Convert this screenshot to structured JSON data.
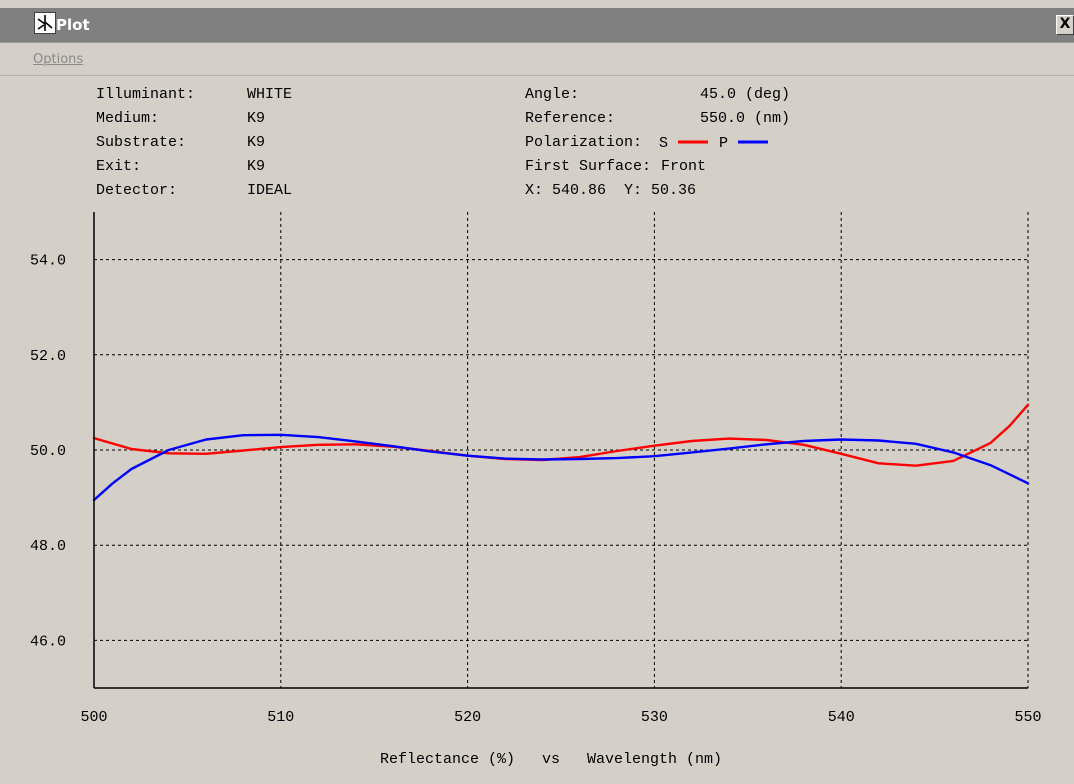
{
  "window": {
    "title": "Plot",
    "close_label": "X",
    "menu": [
      "Options"
    ]
  },
  "info": {
    "illuminant_label": "Illuminant:",
    "illuminant_value": "WHITE",
    "medium_label": "Medium:",
    "medium_value": "K9",
    "substrate_label": "Substrate:",
    "substrate_value": "K9",
    "exit_label": "Exit:",
    "exit_value": "K9",
    "detector_label": "Detector:",
    "detector_value": "IDEAL",
    "angle_label": "Angle:",
    "angle_value": "45.0 (deg)",
    "reference_label": "Reference:",
    "reference_value": "550.0 (nm)",
    "polarization_label": "Polarization:",
    "first_surface_label": "First Surface:",
    "first_surface_value": "Front",
    "cursor_readout": "X: 540.86  Y: 50.36"
  },
  "chart_data": {
    "type": "line",
    "title": "",
    "xlabel": "Reflectance (%)   vs   Wavelength (nm)",
    "ylabel": "",
    "xlim": [
      500,
      550
    ],
    "ylim": [
      45,
      55
    ],
    "x_ticks": [
      500,
      510,
      520,
      530,
      540,
      550
    ],
    "x_tick_labels": [
      "500",
      "510",
      "520",
      "530",
      "540",
      "550"
    ],
    "y_ticks": [
      54,
      52,
      50,
      48,
      46
    ],
    "y_tick_labels": [
      "54.0",
      "52.0",
      "50.0",
      "48.0",
      "46.0"
    ],
    "grid": true,
    "legend_position": "top",
    "series": [
      {
        "name": "S",
        "color": "#ff0000",
        "x": [
          500,
          502,
          504,
          506,
          508,
          510,
          512,
          514,
          516,
          518,
          520,
          522,
          524,
          526,
          528,
          530,
          532,
          534,
          536,
          538,
          540,
          542,
          544,
          546,
          548,
          549,
          550
        ],
        "y": [
          50.25,
          50.02,
          49.93,
          49.92,
          49.99,
          50.06,
          50.11,
          50.12,
          50.07,
          49.98,
          49.88,
          49.81,
          49.79,
          49.85,
          49.98,
          50.09,
          50.19,
          50.24,
          50.21,
          50.11,
          49.92,
          49.72,
          49.67,
          49.77,
          50.15,
          50.5,
          50.95
        ]
      },
      {
        "name": "P",
        "color": "#0000ff",
        "x": [
          500,
          501,
          502,
          504,
          506,
          508,
          510,
          512,
          514,
          516,
          518,
          520,
          522,
          524,
          526,
          528,
          530,
          532,
          534,
          536,
          538,
          540,
          542,
          544,
          546,
          548,
          550
        ],
        "y": [
          48.95,
          49.3,
          49.6,
          50.0,
          50.22,
          50.31,
          50.32,
          50.27,
          50.18,
          50.08,
          49.97,
          49.88,
          49.82,
          49.8,
          49.81,
          49.83,
          49.87,
          49.95,
          50.03,
          50.12,
          50.19,
          50.22,
          50.2,
          50.13,
          49.95,
          49.68,
          49.3
        ]
      }
    ]
  }
}
